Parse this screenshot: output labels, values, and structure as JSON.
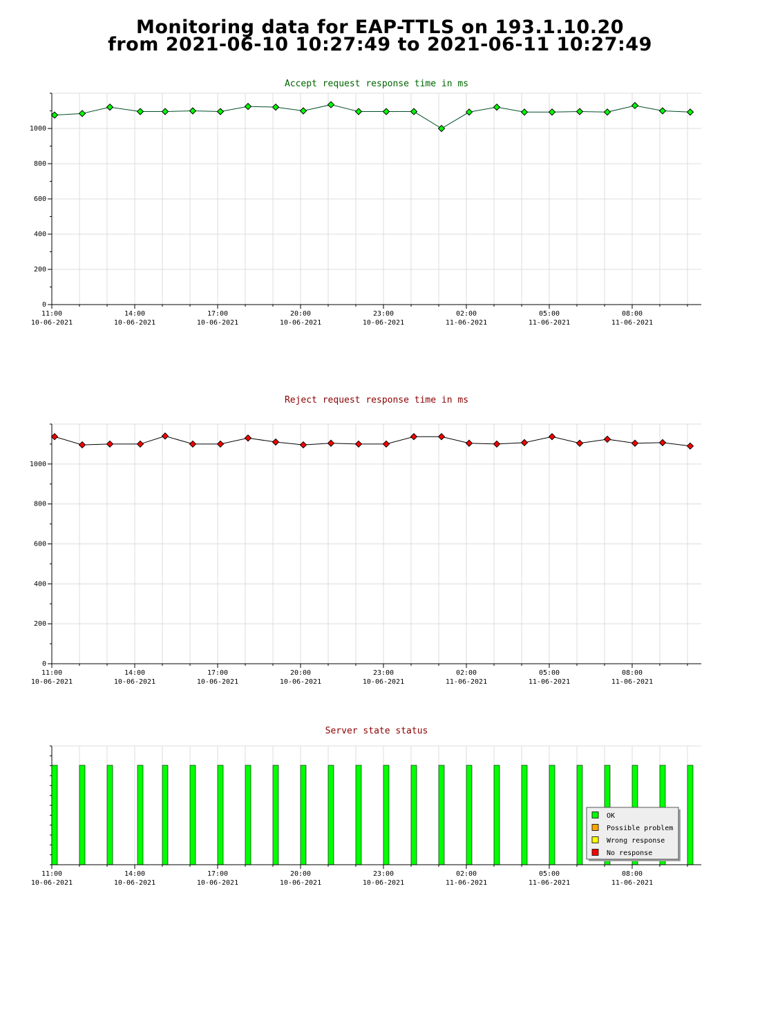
{
  "page": {
    "title_line1": "Monitoring data for EAP-TTLS on 193.1.10.20",
    "title_line2": "from 2021-06-10 10:27:49 to 2021-06-11 10:27:49"
  },
  "x_axis": {
    "ticks": [
      {
        "time": "11:00",
        "date": "10-06-2021",
        "hour": 11
      },
      {
        "time": "14:00",
        "date": "10-06-2021",
        "hour": 14
      },
      {
        "time": "17:00",
        "date": "10-06-2021",
        "hour": 17
      },
      {
        "time": "20:00",
        "date": "10-06-2021",
        "hour": 20
      },
      {
        "time": "23:00",
        "date": "10-06-2021",
        "hour": 23
      },
      {
        "time": "02:00",
        "date": "11-06-2021",
        "hour": 26
      },
      {
        "time": "05:00",
        "date": "11-06-2021",
        "hour": 29
      },
      {
        "time": "08:00",
        "date": "11-06-2021",
        "hour": 32
      }
    ],
    "range_hours": [
      11,
      34.5
    ]
  },
  "chart_data": [
    {
      "type": "line",
      "title": "Accept request response time in ms",
      "title_color": "#006400",
      "line_color": "#004d26",
      "marker_color": "#00ff00",
      "ylim": [
        0,
        1200
      ],
      "yticks": [
        0,
        200,
        400,
        600,
        800,
        1000
      ],
      "grid": true,
      "x": [
        11.1,
        12.1,
        13.1,
        14.2,
        15.1,
        16.1,
        17.1,
        18.1,
        19.1,
        20.1,
        21.1,
        22.1,
        23.1,
        24.1,
        25.1,
        26.1,
        27.1,
        28.1,
        29.1,
        30.1,
        31.1,
        32.1,
        33.1,
        34.1
      ],
      "values": [
        1076,
        1085,
        1121,
        1096,
        1096,
        1100,
        1096,
        1125,
        1121,
        1100,
        1135,
        1096,
        1096,
        1096,
        1000,
        1093,
        1121,
        1093,
        1093,
        1096,
        1093,
        1130,
        1100,
        1093
      ]
    },
    {
      "type": "line",
      "title": "Reject request response time in ms",
      "title_color": "#8b0000",
      "line_color": "#000000",
      "marker_color": "#ff0000",
      "ylim": [
        0,
        1200
      ],
      "yticks": [
        0,
        200,
        400,
        600,
        800,
        1000
      ],
      "grid": true,
      "x": [
        11.1,
        12.1,
        13.1,
        14.2,
        15.1,
        16.1,
        17.1,
        18.1,
        19.1,
        20.1,
        21.1,
        22.1,
        23.1,
        24.1,
        25.1,
        26.1,
        27.1,
        28.1,
        29.1,
        30.1,
        31.1,
        32.1,
        33.1,
        34.1
      ],
      "values": [
        1137,
        1096,
        1100,
        1100,
        1140,
        1100,
        1100,
        1130,
        1110,
        1096,
        1104,
        1100,
        1100,
        1137,
        1137,
        1104,
        1100,
        1107,
        1137,
        1104,
        1124,
        1104,
        1107,
        1090
      ]
    },
    {
      "type": "bar",
      "title": "Server state status",
      "title_color": "#8b0000",
      "x": [
        11.1,
        12.1,
        13.1,
        14.2,
        15.1,
        16.1,
        17.1,
        18.1,
        19.1,
        20.1,
        21.1,
        22.1,
        23.1,
        24.1,
        25.1,
        26.1,
        27.1,
        28.1,
        29.1,
        30.1,
        31.1,
        32.1,
        33.1,
        34.1
      ],
      "values": [
        "OK",
        "OK",
        "OK",
        "OK",
        "OK",
        "OK",
        "OK",
        "OK",
        "OK",
        "OK",
        "OK",
        "OK",
        "OK",
        "OK",
        "OK",
        "OK",
        "OK",
        "OK",
        "OK",
        "OK",
        "OK",
        "OK",
        "OK",
        "OK"
      ],
      "legend": [
        {
          "label": "OK",
          "color": "#00ff00"
        },
        {
          "label": "Possible problem",
          "color": "#ffa500"
        },
        {
          "label": "Wrong response",
          "color": "#ffff00"
        },
        {
          "label": "No response",
          "color": "#ff0000"
        }
      ],
      "legend_position": "bottom-right"
    }
  ]
}
